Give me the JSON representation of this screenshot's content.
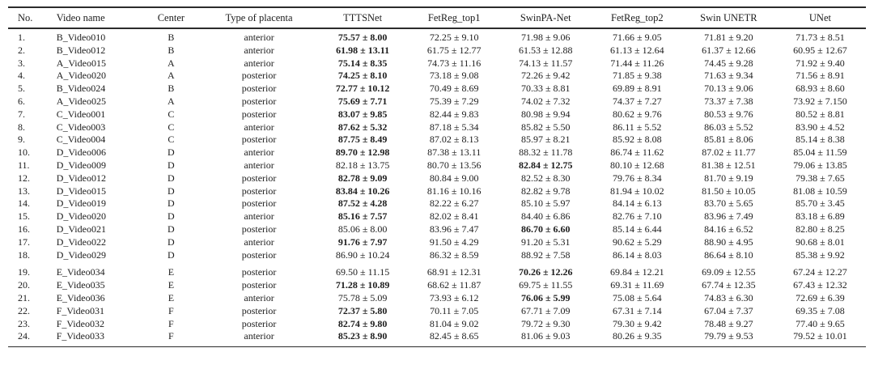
{
  "table": {
    "headers": [
      "No.",
      "Video name",
      "Center",
      "Type of placenta",
      "TTTSNet",
      "FetReg_top1",
      "SwinPA-Net",
      "FetReg_top2",
      "Swin UNETR",
      "UNet"
    ],
    "rows": [
      {
        "no": "1.",
        "video": "B_Video010",
        "center": "B",
        "placenta": "anterior",
        "values": [
          "75.57 ± 8.00",
          "72.25 ± 9.10",
          "71.98 ± 9.06",
          "71.66 ± 9.05",
          "71.81 ± 9.20",
          "71.73 ± 8.51"
        ],
        "bold": 0
      },
      {
        "no": "2.",
        "video": "B_Video012",
        "center": "B",
        "placenta": "anterior",
        "values": [
          "61.98 ± 13.11",
          "61.75 ± 12.77",
          "61.53 ± 12.88",
          "61.13 ± 12.64",
          "61.37 ± 12.66",
          "60.95 ± 12.67"
        ],
        "bold": 0
      },
      {
        "no": "3.",
        "video": "A_Video015",
        "center": "A",
        "placenta": "anterior",
        "values": [
          "75.14 ± 8.35",
          "74.73 ± 11.16",
          "74.13 ± 11.57",
          "71.44 ± 11.26",
          "74.45 ± 9.28",
          "71.92 ± 9.40"
        ],
        "bold": 0
      },
      {
        "no": "4.",
        "video": "A_Video020",
        "center": "A",
        "placenta": "posterior",
        "values": [
          "74.25 ± 8.10",
          "73.18 ± 9.08",
          "72.26 ± 9.42",
          "71.85 ± 9.38",
          "71.63 ± 9.34",
          "71.56 ± 8.91"
        ],
        "bold": 0
      },
      {
        "no": "5.",
        "video": "B_Video024",
        "center": "B",
        "placenta": "posterior",
        "values": [
          "72.77 ± 10.12",
          "70.49 ± 8.69",
          "70.33 ± 8.81",
          "69.89 ± 8.91",
          "70.13 ± 9.06",
          "68.93 ± 8.60"
        ],
        "bold": 0
      },
      {
        "no": "6.",
        "video": "A_Video025",
        "center": "A",
        "placenta": "posterior",
        "values": [
          "75.69 ± 7.71",
          "75.39 ± 7.29",
          "74.02 ± 7.32",
          "74.37 ± 7.27",
          "73.37 ± 7.38",
          "73.92 ± 7.150"
        ],
        "bold": 0
      },
      {
        "no": "7.",
        "video": "C_Video001",
        "center": "C",
        "placenta": "posterior",
        "values": [
          "83.07 ± 9.85",
          "82.44 ± 9.83",
          "80.98 ± 9.94",
          "80.62 ± 9.76",
          "80.53 ± 9.76",
          "80.52 ± 8.81"
        ],
        "bold": 0
      },
      {
        "no": "8.",
        "video": "C_Video003",
        "center": "C",
        "placenta": "anterior",
        "values": [
          "87.62 ± 5.32",
          "87.18 ± 5.34",
          "85.82 ± 5.50",
          "86.11 ± 5.52",
          "86.03 ± 5.52",
          "83.90 ± 4.52"
        ],
        "bold": 0
      },
      {
        "no": "9.",
        "video": "C_Video004",
        "center": "C",
        "placenta": "posterior",
        "values": [
          "87.75 ± 8.49",
          "87.02 ± 8.13",
          "85.97 ± 8.21",
          "85.92 ± 8.08",
          "85.81 ± 8.06",
          "85.14 ± 8.38"
        ],
        "bold": 0
      },
      {
        "no": "10.",
        "video": "D_Video006",
        "center": "D",
        "placenta": "anterior",
        "values": [
          "89.70 ± 12.98",
          "87.38 ± 13.11",
          "88.32 ± 11.78",
          "86.74 ± 11.62",
          "87.02 ± 11.77",
          "85.04 ± 11.59"
        ],
        "bold": 0
      },
      {
        "no": "11.",
        "video": "D_Video009",
        "center": "D",
        "placenta": "anterior",
        "values": [
          "82.18 ± 13.75",
          "80.70 ± 13.56",
          "82.84 ± 12.75",
          "80.10 ± 12.68",
          "81.38 ± 12.51",
          "79.06 ± 13.85"
        ],
        "bold": 2
      },
      {
        "no": "12.",
        "video": "D_Video012",
        "center": "D",
        "placenta": "posterior",
        "values": [
          "82.78 ± 9.09",
          "80.84 ± 9.00",
          "82.52 ± 8.30",
          "79.76 ± 8.34",
          "81.70 ± 9.19",
          "79.38 ± 7.65"
        ],
        "bold": 0
      },
      {
        "no": "13.",
        "video": "D_Video015",
        "center": "D",
        "placenta": "posterior",
        "values": [
          "83.84 ± 10.26",
          "81.16 ± 10.16",
          "82.82 ± 9.78",
          "81.94 ± 10.02",
          "81.50 ± 10.05",
          "81.08 ± 10.59"
        ],
        "bold": 0
      },
      {
        "no": "14.",
        "video": "D_Video019",
        "center": "D",
        "placenta": "posterior",
        "values": [
          "87.52 ± 4.28",
          "82.22 ± 6.27",
          "85.10 ± 5.97",
          "84.14 ± 6.13",
          "83.70 ± 5.65",
          "85.70 ± 3.45"
        ],
        "bold": 0
      },
      {
        "no": "15.",
        "video": "D_Video020",
        "center": "D",
        "placenta": "anterior",
        "values": [
          "85.16 ± 7.57",
          "82.02 ± 8.41",
          "84.40 ± 6.86",
          "82.76 ± 7.10",
          "83.96 ± 7.49",
          "83.18 ± 6.89"
        ],
        "bold": 0
      },
      {
        "no": "16.",
        "video": "D_Video021",
        "center": "D",
        "placenta": "posterior",
        "values": [
          "85.06 ± 8.00",
          "83.96 ± 7.47",
          "86.70 ± 6.60",
          "85.14 ± 6.44",
          "84.16 ± 6.52",
          "82.80 ± 8.25"
        ],
        "bold": 2
      },
      {
        "no": "17.",
        "video": "D_Video022",
        "center": "D",
        "placenta": "anterior",
        "values": [
          "91.76 ± 7.97",
          "91.50 ± 4.29",
          "91.20 ± 5.31",
          "90.62 ± 5.29",
          "88.90 ± 4.95",
          "90.68 ± 8.01"
        ],
        "bold": 0
      },
      {
        "no": "18.",
        "video": "D_Video029",
        "center": "D",
        "placenta": "posterior",
        "values": [
          "86.90 ± 10.24",
          "86.32 ± 8.59",
          "88.92 ± 7.58",
          "86.14 ± 8.03",
          "86.64 ± 8.10",
          "85.38 ± 9.92"
        ],
        "bold": -1
      },
      {
        "no": "19.",
        "video": "E_Video034",
        "center": "E",
        "placenta": "posterior",
        "values": [
          "69.50 ± 11.15",
          "68.91 ± 12.31",
          "70.26 ± 12.26",
          "69.84 ± 12.21",
          "69.09 ± 12.55",
          "67.24 ± 12.27"
        ],
        "bold": 2,
        "gap": true
      },
      {
        "no": "20.",
        "video": "E_Video035",
        "center": "E",
        "placenta": "posterior",
        "values": [
          "71.28 ± 10.89",
          "68.62 ± 11.87",
          "69.75 ± 11.55",
          "69.31 ± 11.69",
          "67.74 ± 12.35",
          "67.43 ± 12.32"
        ],
        "bold": 0
      },
      {
        "no": "21.",
        "video": "E_Video036",
        "center": "E",
        "placenta": "anterior",
        "values": [
          "75.78 ± 5.09",
          "73.93 ± 6.12",
          "76.06 ± 5.99",
          "75.08 ± 5.64",
          "74.83 ± 6.30",
          "72.69 ± 6.39"
        ],
        "bold": 2
      },
      {
        "no": "22.",
        "video": "F_Video031",
        "center": "F",
        "placenta": "posterior",
        "values": [
          "72.37 ± 5.80",
          "70.11 ± 7.05",
          "67.71 ± 7.09",
          "67.31 ± 7.14",
          "67.04 ± 7.37",
          "69.35 ± 7.08"
        ],
        "bold": 0
      },
      {
        "no": "23.",
        "video": "F_Video032",
        "center": "F",
        "placenta": "posterior",
        "values": [
          "82.74 ± 9.80",
          "81.04 ± 9.02",
          "79.72 ± 9.30",
          "79.30 ± 9.42",
          "78.48 ± 9.27",
          "77.40 ± 9.65"
        ],
        "bold": 0
      },
      {
        "no": "24.",
        "video": "F_Video033",
        "center": "F",
        "placenta": "anterior",
        "values": [
          "85.23 ± 8.90",
          "82.45 ± 8.65",
          "81.06 ± 9.03",
          "80.26 ± 9.35",
          "79.79 ± 9.53",
          "79.52 ± 10.01"
        ],
        "bold": 0
      }
    ],
    "cell_names": [
      "row-number",
      "video-name",
      "center-code",
      "placenta-type",
      "tttsnet-score",
      "fetreg-top1-score",
      "swinpa-net-score",
      "fetreg-top2-score",
      "swin-unetr-score",
      "unet-score"
    ],
    "text_color": "#1c1c1c",
    "rule_color": "#2b2b2b"
  }
}
